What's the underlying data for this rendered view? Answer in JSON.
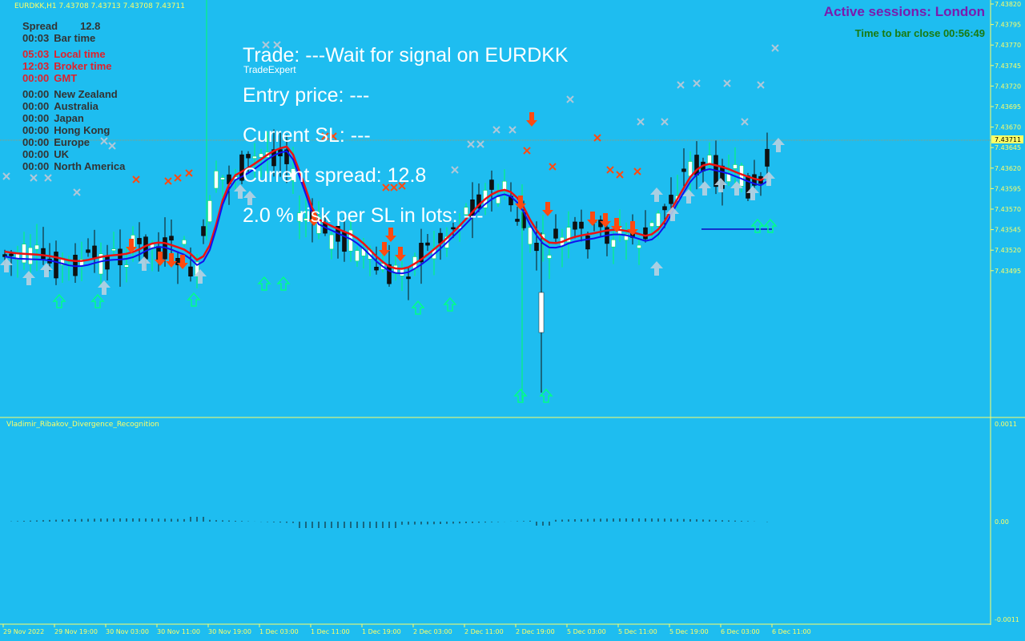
{
  "header": {
    "symbol_line": "EURDKK,H1  7.43708 7.43713 7.43708 7.43711",
    "ea_name": "TradeExpert"
  },
  "info_panel": [
    {
      "time": "Spread",
      "label": "12.8",
      "time_color": "#333333"
    },
    {
      "time": "00:03",
      "label": "Bar time",
      "time_color": "#333333"
    },
    {
      "time": "05:03",
      "label": "Local time",
      "time_color": "#e0202a"
    },
    {
      "time": "12:03",
      "label": "Broker time",
      "time_color": "#e0202a"
    },
    {
      "time": "00:00",
      "label": "GMT",
      "time_color": "#e0202a"
    },
    {
      "time": "00:00",
      "label": "New Zealand",
      "time_color": "#333333"
    },
    {
      "time": "00:00",
      "label": "Australia",
      "time_color": "#333333"
    },
    {
      "time": "00:00",
      "label": "Japan",
      "time_color": "#333333"
    },
    {
      "time": "00:00",
      "label": "Hong Kong",
      "time_color": "#333333"
    },
    {
      "time": "00:00",
      "label": "Europe",
      "time_color": "#333333"
    },
    {
      "time": "00:00",
      "label": "UK",
      "time_color": "#333333"
    },
    {
      "time": "00:00",
      "label": "North America",
      "time_color": "#333333"
    }
  ],
  "trade_info": {
    "signal": "Trade: ---Wait for signal on  EURDKK",
    "entry": "Entry price: ---",
    "sl": "Current SL: ---",
    "spread": "Current spread: 12.8",
    "risk": "2.0 % risk per SL in lots: ---"
  },
  "sessions": {
    "active": "Active sessions:  London",
    "bar_close": "Time to bar close 00:56:49"
  },
  "price_axis": {
    "labels": [
      "7.43820",
      "7.43795",
      "7.43770",
      "7.43745",
      "7.43720",
      "7.43695",
      "7.43670",
      "7.43645",
      "7.43620",
      "7.43595",
      "7.43570",
      "7.43545",
      "7.43520",
      "7.43495"
    ],
    "current_price": "7.43711"
  },
  "time_axis": {
    "labels": [
      "29 Nov 2022",
      "29 Nov 19:00",
      "30 Nov 03:00",
      "30 Nov 11:00",
      "30 Nov 19:00",
      "1 Dec 03:00",
      "1 Dec 11:00",
      "1 Dec 19:00",
      "2 Dec 03:00",
      "2 Dec 11:00",
      "2 Dec 19:00",
      "5 Dec 03:00",
      "5 Dec 11:00",
      "5 Dec 19:00",
      "6 Dec 03:00",
      "6 Dec 11:00"
    ]
  },
  "indicator": {
    "name": "Vladimir_Ribakov_Divergence_Recognition",
    "axis_labels": [
      "0.0011",
      "0.00",
      "-0.0011"
    ]
  },
  "colors": {
    "background": "#1ebdf0",
    "axis_text": "#ffff66",
    "ma_red": "#ee1111",
    "ma_blue": "#1111ee",
    "sell_arrow": "#ff4a10",
    "buy_arrow": "#00ff88",
    "cross_marker": "#b0c8d8"
  }
}
